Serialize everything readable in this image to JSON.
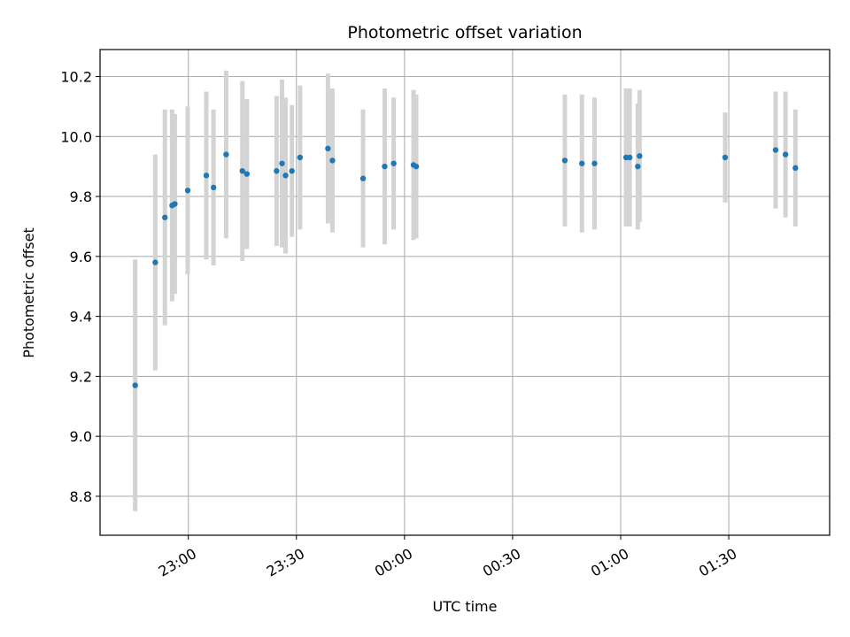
{
  "chart_data": {
    "type": "scatter",
    "title": "Photometric offset variation",
    "xlabel": "UTC time",
    "ylabel": "Photometric offset",
    "grid": true,
    "x_ticks": [
      "23:00",
      "23:30",
      "00:00",
      "00:30",
      "01:00",
      "01:30"
    ],
    "y_ticks": [
      "8.8",
      "9.0",
      "9.2",
      "9.4",
      "9.6",
      "9.8",
      "10.0",
      "10.2"
    ],
    "ylim": [
      8.67,
      10.29
    ],
    "xlim_minutes": [
      -24.5,
      178
    ],
    "x_tick_minutes": [
      0,
      30,
      60,
      90,
      120,
      150
    ],
    "colors": {
      "point": "#1f77b4",
      "errorbar": "#d3d3d3",
      "grid": "#b0b0b0"
    },
    "points": [
      {
        "t": "22:45:15",
        "y": 9.17,
        "err": 0.42
      },
      {
        "t": "22:50:50",
        "y": 9.58,
        "err": 0.36
      },
      {
        "t": "22:53:30",
        "y": 9.73,
        "err": 0.36
      },
      {
        "t": "22:55:30",
        "y": 9.77,
        "err": 0.32
      },
      {
        "t": "22:56:15",
        "y": 9.775,
        "err": 0.3
      },
      {
        "t": "22:59:50",
        "y": 9.82,
        "err": 0.28
      },
      {
        "t": "23:05:00",
        "y": 9.87,
        "err": 0.28
      },
      {
        "t": "23:07:00",
        "y": 9.83,
        "err": 0.26
      },
      {
        "t": "23:10:30",
        "y": 9.94,
        "err": 0.28
      },
      {
        "t": "23:15:00",
        "y": 9.885,
        "err": 0.3
      },
      {
        "t": "23:16:15",
        "y": 9.875,
        "err": 0.25
      },
      {
        "t": "23:24:30",
        "y": 9.885,
        "err": 0.25
      },
      {
        "t": "23:26:00",
        "y": 9.91,
        "err": 0.28
      },
      {
        "t": "23:27:00",
        "y": 9.87,
        "err": 0.26
      },
      {
        "t": "23:28:45",
        "y": 9.885,
        "err": 0.22
      },
      {
        "t": "23:31:00",
        "y": 9.93,
        "err": 0.24
      },
      {
        "t": "23:38:45",
        "y": 9.96,
        "err": 0.25
      },
      {
        "t": "23:40:00",
        "y": 9.92,
        "err": 0.24
      },
      {
        "t": "23:48:30",
        "y": 9.86,
        "err": 0.23
      },
      {
        "t": "23:54:30",
        "y": 9.9,
        "err": 0.26
      },
      {
        "t": "23:57:00",
        "y": 9.91,
        "err": 0.22
      },
      {
        "t": "00:02:30",
        "y": 9.905,
        "err": 0.25
      },
      {
        "t": "00:03:15",
        "y": 9.9,
        "err": 0.24
      },
      {
        "t": "00:44:30",
        "y": 9.92,
        "err": 0.22
      },
      {
        "t": "00:49:15",
        "y": 9.91,
        "err": 0.23
      },
      {
        "t": "00:52:45",
        "y": 9.91,
        "err": 0.22
      },
      {
        "t": "01:01:30",
        "y": 9.93,
        "err": 0.23
      },
      {
        "t": "01:02:30",
        "y": 9.93,
        "err": 0.23
      },
      {
        "t": "01:04:45",
        "y": 9.9,
        "err": 0.21
      },
      {
        "t": "01:05:15",
        "y": 9.935,
        "err": 0.22
      },
      {
        "t": "01:29:00",
        "y": 9.93,
        "err": 0.15
      },
      {
        "t": "01:43:00",
        "y": 9.955,
        "err": 0.195
      },
      {
        "t": "01:45:45",
        "y": 9.94,
        "err": 0.21
      },
      {
        "t": "01:48:30",
        "y": 9.895,
        "err": 0.195
      }
    ]
  }
}
